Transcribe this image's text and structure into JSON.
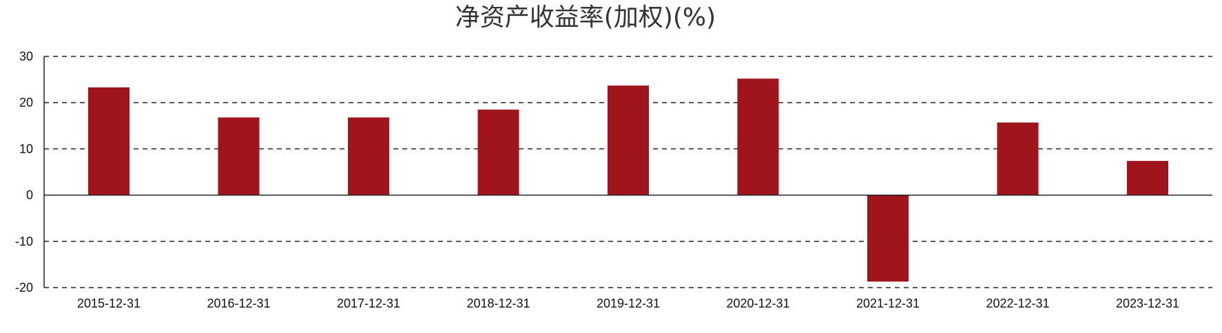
{
  "chart_data": {
    "type": "bar",
    "title": "净资产收益率(加权)(%)",
    "xlabel": "",
    "ylabel": "",
    "categories": [
      "2015-12-31",
      "2016-12-31",
      "2017-12-31",
      "2018-12-31",
      "2019-12-31",
      "2020-12-31",
      "2021-12-31",
      "2022-12-31",
      "2023-12-31"
    ],
    "values": [
      23.3,
      16.8,
      16.8,
      18.5,
      23.7,
      25.2,
      -18.7,
      15.7,
      7.4
    ],
    "ylim": [
      -20,
      30
    ],
    "yticks": [
      30,
      20,
      10,
      0,
      -10,
      -20
    ],
    "grid": true,
    "legend": "none",
    "bar_color": "#a0141c"
  }
}
